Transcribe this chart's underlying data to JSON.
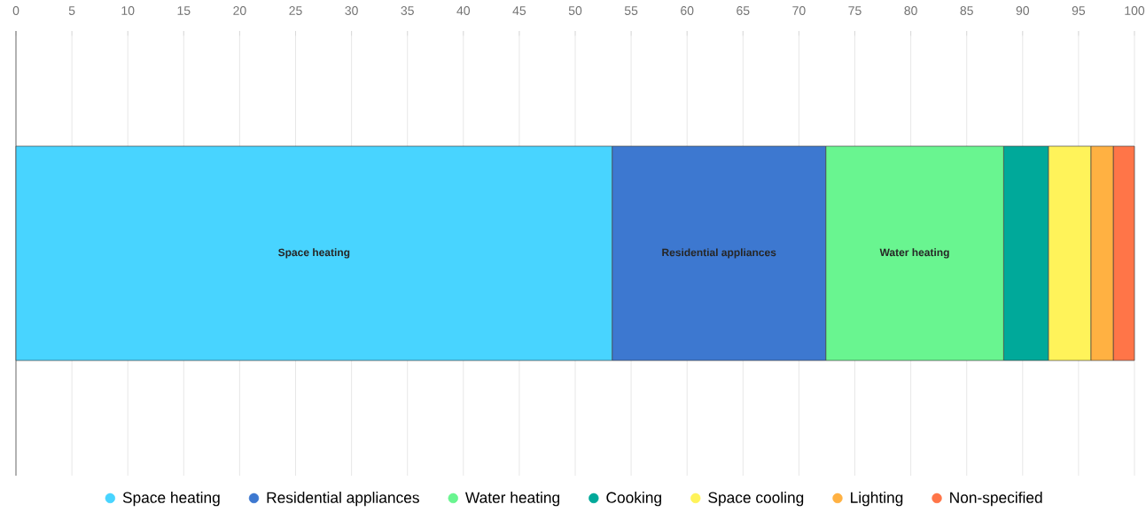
{
  "chart_data": {
    "type": "bar",
    "orientation": "horizontal",
    "stacked": true,
    "categories": [
      null
    ],
    "series": [
      {
        "name": "Space heating",
        "color": "#48d4ff",
        "values": [
          53.3
        ]
      },
      {
        "name": "Residential appliances",
        "color": "#3d78d0",
        "values": [
          19.1
        ]
      },
      {
        "name": "Water heating",
        "color": "#69f590",
        "values": [
          15.9
        ]
      },
      {
        "name": "Cooking",
        "color": "#00a99a",
        "values": [
          4.0
        ]
      },
      {
        "name": "Space cooling",
        "color": "#fff35a",
        "values": [
          3.8
        ]
      },
      {
        "name": "Lighting",
        "color": "#ffb142",
        "values": [
          2.0
        ]
      },
      {
        "name": "Non-specified",
        "color": "#ff7548",
        "values": [
          1.9
        ]
      }
    ],
    "xlim": [
      0,
      100
    ],
    "xticks": [
      0,
      5,
      10,
      15,
      20,
      25,
      30,
      35,
      40,
      45,
      50,
      55,
      60,
      65,
      70,
      75,
      80,
      85,
      90,
      95,
      100
    ],
    "grid": "x",
    "legend": "bottom"
  }
}
